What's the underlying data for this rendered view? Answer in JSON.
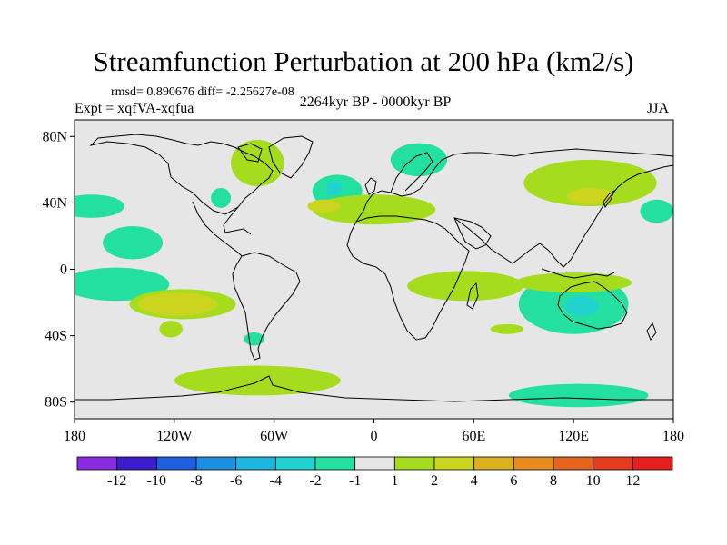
{
  "title": "Streamfunction Perturbation at 200 hPa (km2/s)",
  "stats": "rmsd= 0.890676 diff= -2.25627e-08",
  "period": "2264kyr BP - 0000kyr BP",
  "experiment": "Expt = xqfVA-xqfua",
  "season": "JJA",
  "map": {
    "lon_range": [
      -180,
      180
    ],
    "lat_range": [
      -90,
      90
    ],
    "lon_ticks": [
      {
        "lon": -180,
        "label": "180"
      },
      {
        "lon": -120,
        "label": "120W"
      },
      {
        "lon": -60,
        "label": "60W"
      },
      {
        "lon": 0,
        "label": "0"
      },
      {
        "lon": 60,
        "label": "60E"
      },
      {
        "lon": 120,
        "label": "120E"
      },
      {
        "lon": 180,
        "label": "180"
      }
    ],
    "lat_ticks": [
      {
        "lat": 80,
        "label": "80N"
      },
      {
        "lat": 40,
        "label": "40N"
      },
      {
        "lat": 0,
        "label": "0"
      },
      {
        "lat": -40,
        "label": "40S"
      },
      {
        "lat": -80,
        "label": "80S"
      }
    ],
    "background_color": "#e6e6e6",
    "anomalies": [
      {
        "lon": -145,
        "lat": 16,
        "rlon": 18,
        "rlat": 10,
        "value": -1.5
      },
      {
        "lon": -170,
        "lat": 38,
        "rlon": 20,
        "rlat": 7,
        "value": -1.5
      },
      {
        "lon": -155,
        "lat": -9,
        "rlon": 32,
        "rlat": 10,
        "value": -1.5
      },
      {
        "lon": -92,
        "lat": 43,
        "rlon": 6,
        "rlat": 6,
        "value": -1.5
      },
      {
        "lon": -22,
        "lat": 47,
        "rlon": 15,
        "rlat": 10,
        "value": -1.5
      },
      {
        "lon": -24,
        "lat": 49,
        "rlon": 5,
        "rlat": 4,
        "value": -2.5
      },
      {
        "lon": 27,
        "lat": 66,
        "rlon": 17,
        "rlat": 10,
        "value": -1.5
      },
      {
        "lon": 120,
        "lat": -21,
        "rlon": 33,
        "rlat": 18,
        "value": -1.5
      },
      {
        "lon": 125,
        "lat": -22,
        "rlon": 10,
        "rlat": 6,
        "value": -2.5
      },
      {
        "lon": 170,
        "lat": 35,
        "rlon": 10,
        "rlat": 7,
        "value": -1.5
      },
      {
        "lon": 123,
        "lat": -76,
        "rlon": 42,
        "rlat": 7,
        "value": -1.5
      },
      {
        "lon": -72,
        "lat": -42,
        "rlon": 6,
        "rlat": 4,
        "value": -1.5
      },
      {
        "lon": -70,
        "lat": 64,
        "rlon": 16,
        "rlat": 14,
        "value": 1.5
      },
      {
        "lon": 0,
        "lat": 36,
        "rlon": 37,
        "rlat": 9,
        "value": 1.5
      },
      {
        "lon": -115,
        "lat": -21,
        "rlon": 32,
        "rlat": 9,
        "value": 1.5
      },
      {
        "lon": 55,
        "lat": -10,
        "rlon": 35,
        "rlat": 9,
        "value": 1.5
      },
      {
        "lon": -122,
        "lat": -36,
        "rlon": 7,
        "rlat": 5,
        "value": 1.5
      },
      {
        "lon": -70,
        "lat": -67,
        "rlon": 50,
        "rlat": 9,
        "value": 1.5
      },
      {
        "lon": 80,
        "lat": -36,
        "rlon": 10,
        "rlat": 3,
        "value": 1.5
      },
      {
        "lon": 130,
        "lat": 52,
        "rlon": 40,
        "rlat": 14,
        "value": 1.5
      },
      {
        "lon": 120,
        "lat": -8,
        "rlon": 35,
        "rlat": 6,
        "value": 1.5
      },
      {
        "lon": -118,
        "lat": -21,
        "rlon": 24,
        "rlat": 7,
        "value": 3
      },
      {
        "lon": -30,
        "lat": 38,
        "rlon": 10,
        "rlat": 4,
        "value": 3
      },
      {
        "lon": 130,
        "lat": 44,
        "rlon": 14,
        "rlat": 5,
        "value": 3
      }
    ]
  },
  "colorbar": {
    "colors": [
      "#8a2be2",
      "#3c1ccc",
      "#1e5fe0",
      "#1c8fe0",
      "#1cb6e0",
      "#22d2d0",
      "#24e0a0",
      "#e6e6e6",
      "#a6dc1e",
      "#cbd41e",
      "#dcb01e",
      "#e68c1e",
      "#e6641e",
      "#e63c1e",
      "#e61e1e"
    ],
    "labels": [
      "-12",
      "-10",
      "-8",
      "-6",
      "-4",
      "-2",
      "-1",
      "1",
      "2",
      "4",
      "6",
      "8",
      "10",
      "12"
    ]
  }
}
